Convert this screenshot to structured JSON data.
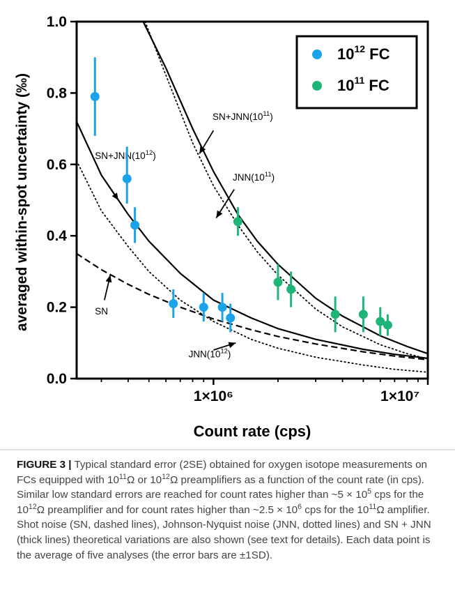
{
  "chart_data": {
    "type": "scatter",
    "title": "",
    "xlabel": "Count rate (cps)",
    "ylabel": "averaged within-spot uncertainty (‰)",
    "x_scale": "log",
    "xlim": [
      230000,
      10000000
    ],
    "ylim": [
      0,
      1.0
    ],
    "x_ticks": [
      {
        "value": 1000000,
        "label": "1×10⁶"
      },
      {
        "value": 10000000,
        "label": "1×10⁷"
      }
    ],
    "y_ticks": [
      {
        "value": 0.0,
        "label": "0.0"
      },
      {
        "value": 0.2,
        "label": "0.2"
      },
      {
        "value": 0.4,
        "label": "0.4"
      },
      {
        "value": 0.6,
        "label": "0.6"
      },
      {
        "value": 0.8,
        "label": "0.8"
      },
      {
        "value": 1.0,
        "label": "1.0"
      }
    ],
    "legend": {
      "placement": "top-right",
      "entries": [
        {
          "base": "10",
          "exp": "12",
          "suffix": " FC",
          "color": "#1aa3e8"
        },
        {
          "base": "10",
          "exp": "11",
          "suffix": " FC",
          "color": "#1fb579"
        }
      ]
    },
    "series": [
      {
        "color": "#1aa3e8",
        "points": [
          {
            "x": 280000,
            "y": 0.79,
            "lo": 0.68,
            "hi": 0.9
          },
          {
            "x": 395000,
            "y": 0.56,
            "lo": 0.49,
            "hi": 0.65
          },
          {
            "x": 430000,
            "y": 0.43,
            "lo": 0.38,
            "hi": 0.48
          },
          {
            "x": 650000,
            "y": 0.21,
            "lo": 0.17,
            "hi": 0.25
          },
          {
            "x": 900000,
            "y": 0.2,
            "lo": 0.16,
            "hi": 0.24
          },
          {
            "x": 1100000,
            "y": 0.2,
            "lo": 0.16,
            "hi": 0.24
          },
          {
            "x": 1200000,
            "y": 0.17,
            "lo": 0.13,
            "hi": 0.21
          }
        ]
      },
      {
        "color": "#1fb579",
        "points": [
          {
            "x": 1300000,
            "y": 0.44,
            "lo": 0.4,
            "hi": 0.48
          },
          {
            "x": 2000000,
            "y": 0.27,
            "lo": 0.22,
            "hi": 0.32
          },
          {
            "x": 2300000,
            "y": 0.25,
            "lo": 0.2,
            "hi": 0.3
          },
          {
            "x": 3700000,
            "y": 0.18,
            "lo": 0.13,
            "hi": 0.23
          },
          {
            "x": 5000000,
            "y": 0.18,
            "lo": 0.13,
            "hi": 0.23
          },
          {
            "x": 6000000,
            "y": 0.16,
            "lo": 0.12,
            "hi": 0.2
          },
          {
            "x": 6500000,
            "y": 0.15,
            "lo": 0.12,
            "hi": 0.18
          }
        ]
      }
    ],
    "curves": [
      {
        "style": "dashed",
        "points": [
          [
            230000,
            0.35
          ],
          [
            300000,
            0.305
          ],
          [
            400000,
            0.264
          ],
          [
            500000,
            0.236
          ],
          [
            700000,
            0.2
          ],
          [
            1000000,
            0.167
          ],
          [
            1500000,
            0.137
          ],
          [
            2000000,
            0.118
          ],
          [
            3000000,
            0.097
          ],
          [
            5000000,
            0.075
          ],
          [
            7000000,
            0.063
          ],
          [
            10000000,
            0.053
          ]
        ]
      },
      {
        "style": "dotted",
        "points": [
          [
            230000,
            0.61
          ],
          [
            300000,
            0.47
          ],
          [
            400000,
            0.37
          ],
          [
            500000,
            0.3
          ],
          [
            700000,
            0.22
          ],
          [
            1000000,
            0.16
          ],
          [
            1500000,
            0.11
          ],
          [
            2000000,
            0.085
          ],
          [
            3000000,
            0.06
          ],
          [
            5000000,
            0.038
          ],
          [
            7000000,
            0.026
          ],
          [
            10000000,
            0.018
          ]
        ]
      },
      {
        "style": "solid",
        "points": [
          [
            230000,
            0.72
          ],
          [
            300000,
            0.57
          ],
          [
            400000,
            0.46
          ],
          [
            500000,
            0.385
          ],
          [
            700000,
            0.295
          ],
          [
            1000000,
            0.22
          ],
          [
            1500000,
            0.17
          ],
          [
            2000000,
            0.14
          ],
          [
            3000000,
            0.11
          ],
          [
            5000000,
            0.082
          ],
          [
            7000000,
            0.068
          ],
          [
            10000000,
            0.057
          ]
        ]
      },
      {
        "style": "dotted",
        "points": [
          [
            480000,
            1.0
          ],
          [
            600000,
            0.85
          ],
          [
            800000,
            0.66
          ],
          [
            1000000,
            0.54
          ],
          [
            1300000,
            0.43
          ],
          [
            1600000,
            0.355
          ],
          [
            2000000,
            0.29
          ],
          [
            3000000,
            0.195
          ],
          [
            4000000,
            0.145
          ],
          [
            6000000,
            0.095
          ],
          [
            8000000,
            0.07
          ],
          [
            10000000,
            0.055
          ]
        ]
      },
      {
        "style": "solid",
        "points": [
          [
            470000,
            1.0
          ],
          [
            600000,
            0.87
          ],
          [
            800000,
            0.7
          ],
          [
            1000000,
            0.58
          ],
          [
            1300000,
            0.46
          ],
          [
            1600000,
            0.385
          ],
          [
            2000000,
            0.32
          ],
          [
            3000000,
            0.225
          ],
          [
            4000000,
            0.175
          ],
          [
            6000000,
            0.12
          ],
          [
            8000000,
            0.09
          ],
          [
            10000000,
            0.07
          ]
        ]
      }
    ],
    "annotations": [
      {
        "text": "SN+JNN(10",
        "sup": "12",
        "close": ")",
        "tx": 280000,
        "ty": 0.615,
        "ax": 300000,
        "ay": 0.57,
        "hx": 360000,
        "hy": 0.5
      },
      {
        "text": "SN+JNN(10",
        "sup": "11",
        "close": ")",
        "tx": 990000,
        "ty": 0.725,
        "ax": 1000000,
        "ay": 0.695,
        "hx": 860000,
        "hy": 0.63
      },
      {
        "text": "JNN(10",
        "sup": "11",
        "close": ")",
        "tx": 1230000,
        "ty": 0.555,
        "ax": 1250000,
        "ay": 0.53,
        "hx": 1030000,
        "hy": 0.45
      },
      {
        "text": "SN",
        "sup": "",
        "close": "",
        "tx": 280000,
        "ty": 0.18,
        "ax": 310000,
        "ay": 0.22,
        "hx": 330000,
        "hy": 0.29
      },
      {
        "text": "JNN(10",
        "sup": "12",
        "close": ")",
        "tx": 765000,
        "ty": 0.06,
        "ax": 1000000,
        "ay": 0.08,
        "hx": 1270000,
        "hy": 0.1
      }
    ]
  },
  "caption": {
    "label": "FIGURE 3 |",
    "parts": [
      {
        "t": " Typical standard error (2SE) obtained for oxygen isotope measurements on FCs equipped with 10"
      },
      {
        "t": "11",
        "sup": true
      },
      {
        "t": "Ω or 10"
      },
      {
        "t": "12",
        "sup": true
      },
      {
        "t": "Ω preamplifiers as a function of the count rate (in cps). Similar low standard errors are reached for count rates higher than ~5 × 10"
      },
      {
        "t": "5",
        "sup": true
      },
      {
        "t": " cps for the 10"
      },
      {
        "t": "12",
        "sup": true
      },
      {
        "t": "Ω preamplifier and for count rates higher than ~2.5 × 10"
      },
      {
        "t": "6",
        "sup": true
      },
      {
        "t": " cps for the 10"
      },
      {
        "t": "11",
        "sup": true
      },
      {
        "t": "Ω amplifier. Shot noise (SN, dashed lines), Johnson-Nyquist noise (JNN, dotted lines) and SN + JNN (thick lines) theoretical variations are also shown (see text for details). Each data point is the average of five analyses (the error bars are ±1SD)."
      }
    ]
  }
}
